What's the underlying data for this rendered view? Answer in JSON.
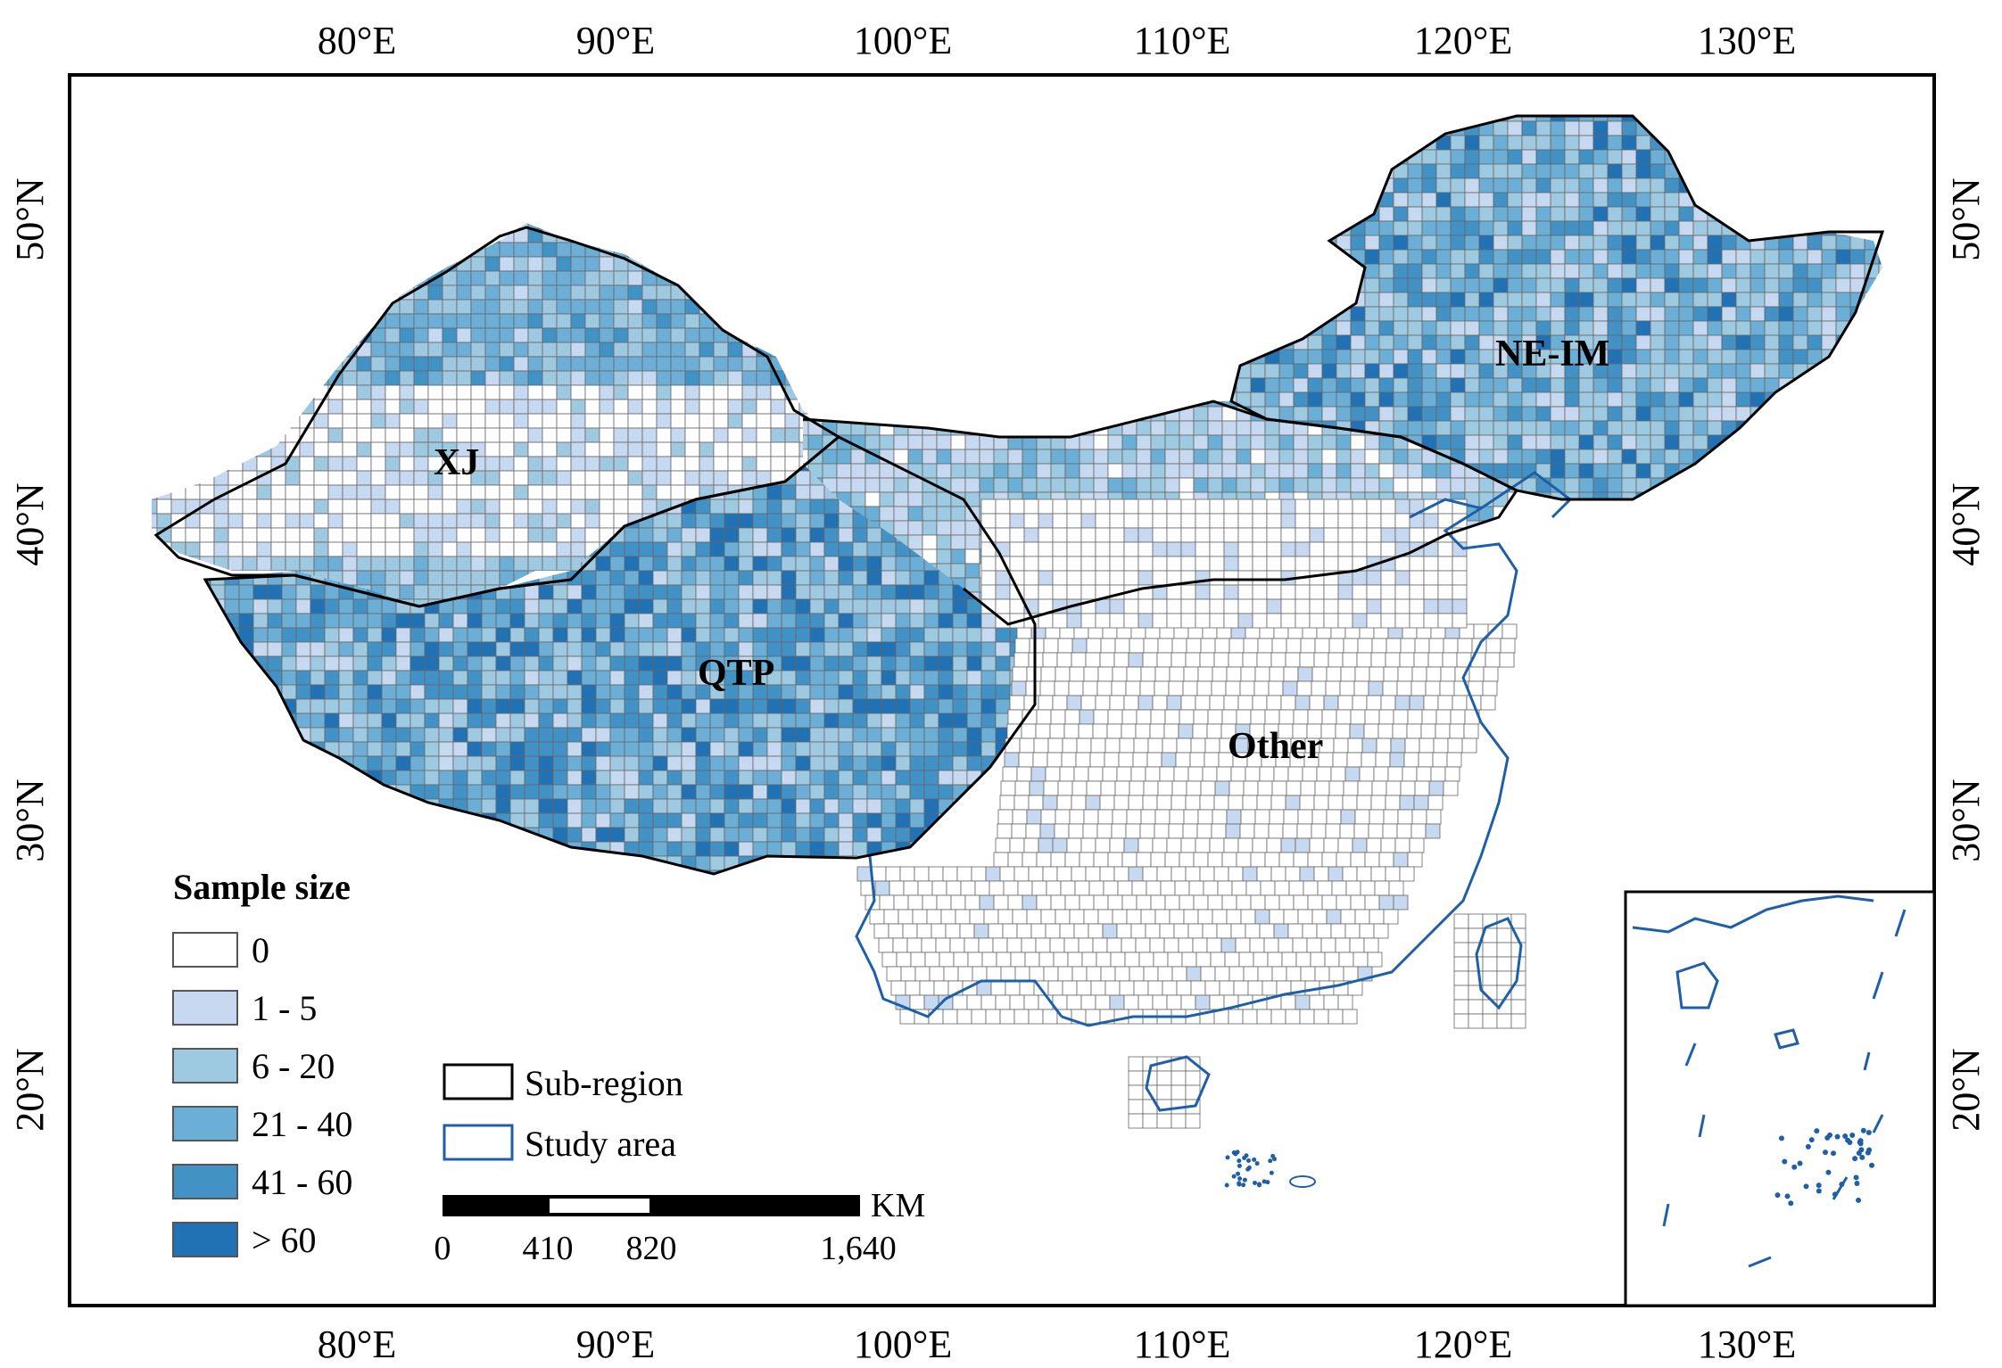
{
  "map": {
    "ticks_top": [
      "80°E",
      "90°E",
      "100°E",
      "110°E",
      "120°E",
      "130°E"
    ],
    "ticks_bottom": [
      "80°E",
      "90°E",
      "100°E",
      "110°E",
      "120°E",
      "130°E"
    ],
    "ticks_left": [
      "50°N",
      "40°N",
      "30°N",
      "20°N"
    ],
    "ticks_right": [
      "50°N",
      "40°N",
      "30°N",
      "20°N"
    ],
    "regions": [
      "XJ",
      "QTP",
      "NE-IM",
      "Other"
    ]
  },
  "legend": {
    "title": "Sample size",
    "classes": [
      {
        "label": "0",
        "color": "#ffffff"
      },
      {
        "label": "1 - 5",
        "color": "#c6d9f0"
      },
      {
        "label": "6 - 20",
        "color": "#9ecae1"
      },
      {
        "label": "21 - 40",
        "color": "#6baed6"
      },
      {
        "label": "41 - 60",
        "color": "#4292c6"
      },
      {
        "label": "> 60",
        "color": "#2171b5"
      }
    ],
    "boundary_items": [
      {
        "label": "Sub-region",
        "stroke": "#000000"
      },
      {
        "label": "Study area",
        "stroke": "#1f5fa8"
      }
    ]
  },
  "scalebar": {
    "unit": "KM",
    "labels": [
      "0",
      "410",
      "820",
      "1,640"
    ]
  },
  "colors": {
    "coast": "#1f5fa8",
    "grid_line": "#555555",
    "frame": "#000000"
  }
}
